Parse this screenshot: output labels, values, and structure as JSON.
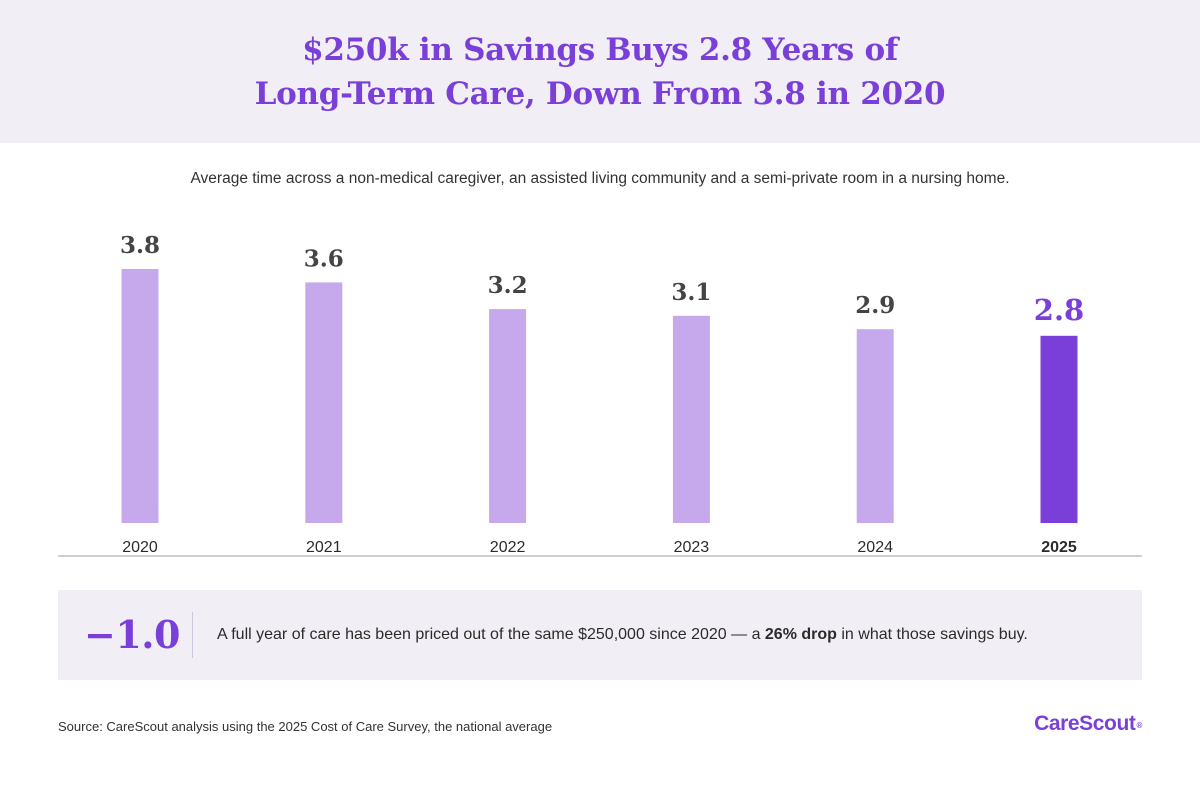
{
  "header": {
    "title_line1": "$250k in Savings Buys 2.8 Years of",
    "title_line2": "Long-Term Care, Down From 3.8 in 2020"
  },
  "subtitle": "Average time across a non-medical caregiver, an assisted living community and a semi-private room in a nursing home.",
  "chart_data": {
    "type": "bar",
    "title": "$250k in Savings Buys 2.8 Years of Long-Term Care, Down From 3.8 in 2020",
    "subtitle": "Average time across a non-medical caregiver, an assisted living community and a semi-private room in a nursing home.",
    "categories": [
      "2020",
      "2021",
      "2022",
      "2023",
      "2024",
      "2025"
    ],
    "values": [
      3.8,
      3.6,
      3.2,
      3.1,
      2.9,
      2.8
    ],
    "value_labels": [
      "3.8",
      "3.6",
      "3.2",
      "3.1",
      "2.9",
      "2.8"
    ],
    "highlight_category": "2025",
    "xlabel": "",
    "ylabel": "",
    "ylim": [
      0,
      3.8
    ],
    "grid": false,
    "legend": "none"
  },
  "callout": {
    "value": "−1.0",
    "text_before": "A full year of care has been priced out of the same $250,000 since 2020 — a ",
    "text_bold": "26% drop",
    "text_after": " in what those savings buy."
  },
  "footer": {
    "source": "Source: CareScout analysis using the 2025 Cost of Care Survey, the national average",
    "logo_text": "CareScout",
    "logo_mark": "®"
  },
  "colors": {
    "accent": "#7b3fd9",
    "bar": "#c6a9ec",
    "bar_highlight": "#7b3fd9",
    "value_label": "#444444",
    "axis_line": "#cfcfcf",
    "panel_background": "#f1eef5",
    "text": "#2b2b2b"
  }
}
